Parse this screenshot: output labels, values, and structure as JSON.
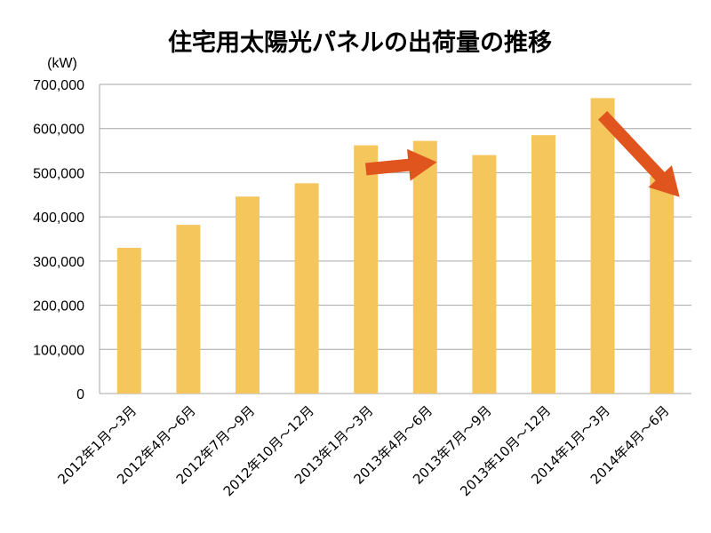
{
  "chart_data": {
    "type": "bar",
    "title": "住宅用太陽光パネルの出荷量の推移",
    "unit_label": "(kW)",
    "categories": [
      "2012年1月～3月",
      "2012年4月～6月",
      "2012年7月～9月",
      "2012年10月～12月",
      "2013年1月～3月",
      "2013年4月～6月",
      "2013年7月～9月",
      "2013年10月～12月",
      "2014年1月～3月",
      "2014年4月～6月"
    ],
    "values": [
      330000,
      382000,
      446000,
      476000,
      562000,
      572000,
      540000,
      585000,
      669000,
      492000
    ],
    "ylim": [
      0,
      700000
    ],
    "yticks": [
      "0",
      "100,000",
      "200,000",
      "300,000",
      "400,000",
      "500,000",
      "600,000",
      "700,000"
    ],
    "grid": true,
    "bar_color": "#F5C65B",
    "grid_color": "#A6A6A6",
    "arrow_color": "#E0541E",
    "annotations": [
      {
        "type": "arrow",
        "from": {
          "x_index": 4,
          "y": 508000
        },
        "to": {
          "x_index": 5.2,
          "y": 524000
        }
      },
      {
        "type": "arrow",
        "from": {
          "x_index": 8,
          "y": 630000
        },
        "to": {
          "x_index": 9.3,
          "y": 445000
        }
      }
    ]
  }
}
